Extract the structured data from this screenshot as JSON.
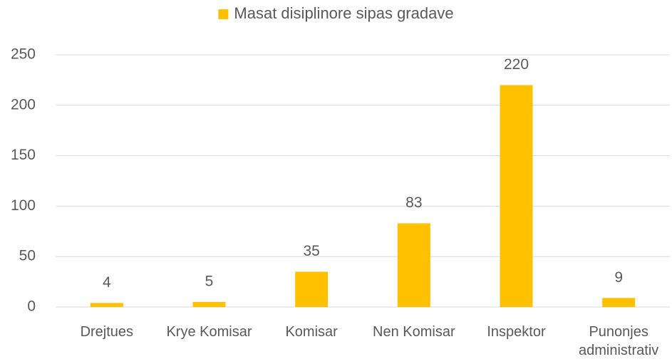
{
  "chart_data": {
    "type": "bar",
    "categories": [
      "Drejtues",
      "Krye Komisar",
      "Komisar",
      "Nen Komisar",
      "Inspektor",
      "Punonjes administrativ"
    ],
    "series": [
      {
        "name": "Masat disiplinore sipas gradave",
        "color": "#FFC000",
        "values": [
          4,
          5,
          35,
          83,
          220,
          9
        ]
      }
    ],
    "ylim": [
      0,
      250
    ],
    "yticks": [
      0,
      50,
      100,
      150,
      200,
      250
    ],
    "grid": true,
    "legend": "top",
    "data_labels": true
  }
}
